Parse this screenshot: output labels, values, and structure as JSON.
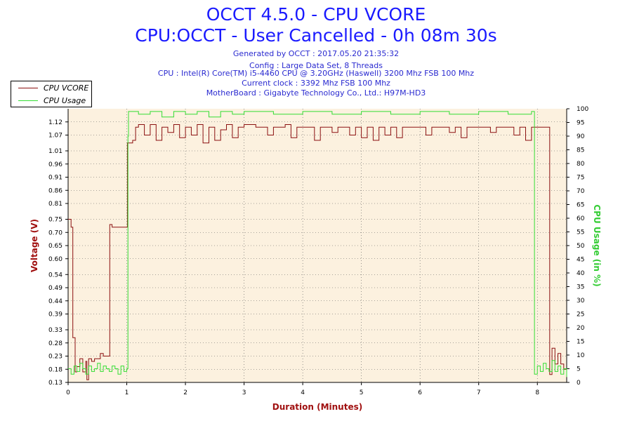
{
  "header": {
    "title": "OCCT 4.5.0 - CPU VCORE",
    "subtitle": "CPU:OCCT - User Cancelled - 0h 08m 30s",
    "info_lines": [
      "Generated by OCCT : 2017.05.20 21:35:32",
      "Config : Large Data Set, 8 Threads",
      "CPU : Intel(R) Core(TM) i5-4460 CPU @ 3.20GHz (Haswell) 3200 Mhz FSB 100 Mhz",
      "Current clock : 3392 Mhz FSB 100 Mhz",
      "MotherBoard : Gigabyte Technology Co., Ltd.: H97M-HD3"
    ]
  },
  "legend": [
    {
      "label": "CPU VCORE",
      "color": "#8b1010"
    },
    {
      "label": "CPU Usage",
      "color": "#33dd33"
    }
  ],
  "chart_data": {
    "type": "line",
    "title": "OCCT 4.5.0 - CPU VCORE",
    "xlabel": "Duration (Minutes)",
    "ylabel": "Voltage (V)",
    "y2label": "CPU Usage (in %)",
    "xlim": [
      0,
      8.5
    ],
    "ylim": [
      0.13,
      1.17
    ],
    "y2lim": [
      0,
      100
    ],
    "x_ticks": [
      "0",
      "1",
      "2",
      "3",
      "4",
      "5",
      "6",
      "7",
      "8"
    ],
    "y_ticks": [
      "0.13",
      "0.18",
      "0.23",
      "0.28",
      "0.33",
      "0.39",
      "0.44",
      "0.49",
      "0.54",
      "0.60",
      "0.65",
      "0.70",
      "0.75",
      "0.81",
      "0.86",
      "0.91",
      "0.96",
      "1.01",
      "1.07",
      "1.12"
    ],
    "y2_ticks": [
      "0",
      "5",
      "10",
      "15",
      "20",
      "25",
      "30",
      "35",
      "40",
      "45",
      "50",
      "55",
      "60",
      "65",
      "70",
      "75",
      "80",
      "85",
      "90",
      "95",
      "100"
    ],
    "grid": true,
    "legend_position": "top-left",
    "series": [
      {
        "name": "CPU VCORE",
        "color": "#8b1010",
        "axis": "left",
        "points": [
          [
            0.0,
            0.75
          ],
          [
            0.05,
            0.72
          ],
          [
            0.08,
            0.3
          ],
          [
            0.12,
            0.17
          ],
          [
            0.15,
            0.19
          ],
          [
            0.2,
            0.22
          ],
          [
            0.25,
            0.17
          ],
          [
            0.3,
            0.21
          ],
          [
            0.32,
            0.14
          ],
          [
            0.35,
            0.22
          ],
          [
            0.4,
            0.21
          ],
          [
            0.45,
            0.22
          ],
          [
            0.5,
            0.22
          ],
          [
            0.55,
            0.24
          ],
          [
            0.6,
            0.23
          ],
          [
            0.65,
            0.23
          ],
          [
            0.7,
            0.23
          ],
          [
            0.71,
            0.73
          ],
          [
            0.75,
            0.72
          ],
          [
            0.85,
            0.72
          ],
          [
            1.0,
            0.72
          ],
          [
            1.01,
            1.04
          ],
          [
            1.1,
            1.05
          ],
          [
            1.15,
            1.1
          ],
          [
            1.2,
            1.11
          ],
          [
            1.3,
            1.07
          ],
          [
            1.4,
            1.11
          ],
          [
            1.5,
            1.05
          ],
          [
            1.6,
            1.1
          ],
          [
            1.7,
            1.08
          ],
          [
            1.8,
            1.11
          ],
          [
            1.9,
            1.06
          ],
          [
            2.0,
            1.1
          ],
          [
            2.1,
            1.07
          ],
          [
            2.2,
            1.11
          ],
          [
            2.3,
            1.04
          ],
          [
            2.4,
            1.1
          ],
          [
            2.5,
            1.05
          ],
          [
            2.6,
            1.09
          ],
          [
            2.7,
            1.11
          ],
          [
            2.8,
            1.06
          ],
          [
            2.9,
            1.1
          ],
          [
            3.0,
            1.11
          ],
          [
            3.2,
            1.1
          ],
          [
            3.4,
            1.07
          ],
          [
            3.5,
            1.1
          ],
          [
            3.7,
            1.11
          ],
          [
            3.8,
            1.06
          ],
          [
            3.9,
            1.1
          ],
          [
            4.1,
            1.1
          ],
          [
            4.2,
            1.05
          ],
          [
            4.3,
            1.1
          ],
          [
            4.5,
            1.08
          ],
          [
            4.6,
            1.1
          ],
          [
            4.8,
            1.07
          ],
          [
            4.9,
            1.1
          ],
          [
            5.0,
            1.06
          ],
          [
            5.1,
            1.1
          ],
          [
            5.2,
            1.05
          ],
          [
            5.3,
            1.1
          ],
          [
            5.4,
            1.07
          ],
          [
            5.5,
            1.1
          ],
          [
            5.6,
            1.06
          ],
          [
            5.7,
            1.1
          ],
          [
            5.8,
            1.1
          ],
          [
            6.0,
            1.1
          ],
          [
            6.1,
            1.07
          ],
          [
            6.2,
            1.1
          ],
          [
            6.4,
            1.1
          ],
          [
            6.5,
            1.08
          ],
          [
            6.6,
            1.1
          ],
          [
            6.7,
            1.06
          ],
          [
            6.8,
            1.1
          ],
          [
            7.0,
            1.1
          ],
          [
            7.2,
            1.08
          ],
          [
            7.3,
            1.1
          ],
          [
            7.5,
            1.1
          ],
          [
            7.6,
            1.07
          ],
          [
            7.7,
            1.1
          ],
          [
            7.8,
            1.05
          ],
          [
            7.9,
            1.1
          ],
          [
            8.0,
            1.1
          ],
          [
            8.2,
            1.1
          ],
          [
            8.21,
            0.16
          ],
          [
            8.25,
            0.26
          ],
          [
            8.3,
            0.2
          ],
          [
            8.35,
            0.24
          ],
          [
            8.4,
            0.2
          ],
          [
            8.45,
            0.18
          ],
          [
            8.5,
            0.15
          ]
        ]
      },
      {
        "name": "CPU Usage",
        "color": "#33dd33",
        "axis": "right",
        "points": [
          [
            0.0,
            5
          ],
          [
            0.05,
            3
          ],
          [
            0.1,
            6
          ],
          [
            0.15,
            4
          ],
          [
            0.2,
            7
          ],
          [
            0.25,
            5
          ],
          [
            0.3,
            3
          ],
          [
            0.35,
            6
          ],
          [
            0.4,
            4
          ],
          [
            0.45,
            5
          ],
          [
            0.5,
            7
          ],
          [
            0.55,
            4
          ],
          [
            0.6,
            6
          ],
          [
            0.65,
            5
          ],
          [
            0.7,
            4
          ],
          [
            0.75,
            6
          ],
          [
            0.8,
            5
          ],
          [
            0.85,
            3
          ],
          [
            0.9,
            6
          ],
          [
            0.95,
            4
          ],
          [
            1.0,
            5
          ],
          [
            1.02,
            90
          ],
          [
            1.03,
            99
          ],
          [
            1.2,
            98
          ],
          [
            1.4,
            99
          ],
          [
            1.6,
            97
          ],
          [
            1.8,
            99
          ],
          [
            2.0,
            98
          ],
          [
            2.2,
            99
          ],
          [
            2.4,
            97
          ],
          [
            2.6,
            99
          ],
          [
            2.8,
            98
          ],
          [
            3.0,
            99
          ],
          [
            3.5,
            98
          ],
          [
            4.0,
            99
          ],
          [
            4.5,
            98
          ],
          [
            5.0,
            99
          ],
          [
            5.5,
            98
          ],
          [
            6.0,
            99
          ],
          [
            6.5,
            98
          ],
          [
            7.0,
            99
          ],
          [
            7.5,
            98
          ],
          [
            7.9,
            99
          ],
          [
            7.95,
            3
          ],
          [
            8.0,
            6
          ],
          [
            8.05,
            4
          ],
          [
            8.1,
            7
          ],
          [
            8.15,
            5
          ],
          [
            8.2,
            4
          ],
          [
            8.25,
            8
          ],
          [
            8.3,
            4
          ],
          [
            8.35,
            6
          ],
          [
            8.4,
            3
          ],
          [
            8.45,
            5
          ],
          [
            8.5,
            2
          ]
        ]
      }
    ]
  }
}
